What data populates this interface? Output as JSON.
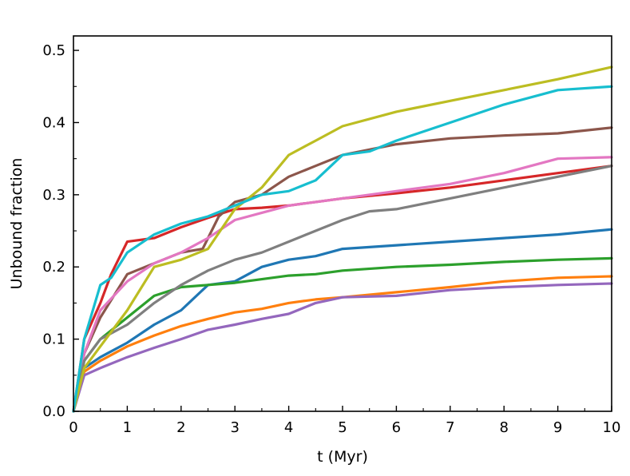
{
  "chart_data": {
    "type": "line",
    "title": "",
    "xlabel": "t (Myr)",
    "ylabel": "Unbound fraction",
    "xlim": [
      0,
      10
    ],
    "ylim": [
      0,
      0.52
    ],
    "x_ticks": [
      "0",
      "1",
      "2",
      "3",
      "4",
      "5",
      "6",
      "7",
      "8",
      "9",
      "10"
    ],
    "y_ticks": [
      "0.0",
      "0.1",
      "0.2",
      "0.3",
      "0.4",
      "0.5"
    ],
    "grid": false,
    "series": [
      {
        "color": "#1f77b4",
        "x": [
          0,
          0.2,
          0.5,
          1,
          1.5,
          2,
          2.5,
          3,
          3.5,
          4,
          4.5,
          5,
          6,
          7,
          8,
          9,
          10
        ],
        "y": [
          0,
          0.06,
          0.075,
          0.095,
          0.12,
          0.14,
          0.175,
          0.18,
          0.2,
          0.21,
          0.215,
          0.225,
          0.23,
          0.235,
          0.24,
          0.245,
          0.252
        ]
      },
      {
        "color": "#ff7f0e",
        "x": [
          0,
          0.2,
          0.5,
          1,
          1.5,
          2,
          2.5,
          3,
          3.5,
          4,
          4.5,
          5,
          6,
          7,
          8,
          9,
          10
        ],
        "y": [
          0,
          0.055,
          0.07,
          0.09,
          0.105,
          0.118,
          0.128,
          0.137,
          0.142,
          0.15,
          0.155,
          0.158,
          0.165,
          0.172,
          0.18,
          0.185,
          0.187
        ]
      },
      {
        "color": "#2ca02c",
        "x": [
          0,
          0.2,
          0.5,
          1,
          1.5,
          2,
          2.5,
          3,
          3.5,
          4,
          4.5,
          5,
          6,
          7,
          8,
          9,
          10
        ],
        "y": [
          0,
          0.07,
          0.1,
          0.13,
          0.16,
          0.172,
          0.175,
          0.178,
          0.183,
          0.188,
          0.19,
          0.195,
          0.2,
          0.203,
          0.207,
          0.21,
          0.212
        ]
      },
      {
        "color": "#d62728",
        "x": [
          0,
          0.2,
          0.5,
          0.7,
          1,
          1.5,
          2,
          2.5,
          3,
          3.5,
          4,
          4.5,
          5,
          6,
          7,
          8,
          9,
          10
        ],
        "y": [
          0,
          0.1,
          0.15,
          0.19,
          0.235,
          0.24,
          0.255,
          0.268,
          0.28,
          0.282,
          0.285,
          0.29,
          0.295,
          0.302,
          0.31,
          0.32,
          0.33,
          0.34
        ]
      },
      {
        "color": "#9467bd",
        "x": [
          0,
          0.2,
          0.5,
          1,
          1.5,
          2,
          2.5,
          3,
          3.5,
          4,
          4.5,
          5,
          6,
          7,
          8,
          9,
          10
        ],
        "y": [
          0,
          0.05,
          0.06,
          0.075,
          0.088,
          0.1,
          0.113,
          0.12,
          0.128,
          0.135,
          0.15,
          0.158,
          0.16,
          0.168,
          0.172,
          0.175,
          0.177
        ]
      },
      {
        "color": "#8c564b",
        "x": [
          0,
          0.2,
          0.5,
          1,
          1.5,
          2,
          2.4,
          2.7,
          3,
          3.5,
          4,
          4.5,
          5,
          6,
          7,
          8,
          9,
          10
        ],
        "y": [
          0,
          0.08,
          0.13,
          0.19,
          0.205,
          0.22,
          0.225,
          0.27,
          0.29,
          0.3,
          0.325,
          0.34,
          0.355,
          0.37,
          0.378,
          0.382,
          0.385,
          0.393
        ]
      },
      {
        "color": "#e377c2",
        "x": [
          0,
          0.2,
          0.5,
          1,
          1.5,
          2,
          2.5,
          3,
          3.5,
          4,
          4.5,
          5,
          6,
          7,
          8,
          9,
          10
        ],
        "y": [
          0,
          0.08,
          0.14,
          0.18,
          0.205,
          0.22,
          0.24,
          0.265,
          0.275,
          0.285,
          0.29,
          0.295,
          0.305,
          0.315,
          0.33,
          0.35,
          0.352
        ]
      },
      {
        "color": "#7f7f7f",
        "x": [
          0,
          0.2,
          0.5,
          1,
          1.5,
          2,
          2.5,
          3,
          3.5,
          4,
          4.5,
          5,
          5.5,
          6,
          7,
          8,
          9,
          10
        ],
        "y": [
          0,
          0.07,
          0.1,
          0.12,
          0.15,
          0.175,
          0.195,
          0.21,
          0.22,
          0.235,
          0.25,
          0.265,
          0.277,
          0.28,
          0.295,
          0.31,
          0.325,
          0.34
        ]
      },
      {
        "color": "#bcbd22",
        "x": [
          0,
          0.2,
          0.5,
          1,
          1.5,
          2,
          2.5,
          3,
          3.5,
          4,
          4.5,
          5,
          6,
          7,
          8,
          9,
          10
        ],
        "y": [
          0,
          0.06,
          0.09,
          0.14,
          0.2,
          0.21,
          0.225,
          0.28,
          0.31,
          0.355,
          0.375,
          0.395,
          0.415,
          0.43,
          0.445,
          0.46,
          0.477
        ]
      },
      {
        "color": "#17becf",
        "x": [
          0,
          0.2,
          0.5,
          0.7,
          1,
          1.5,
          2,
          2.5,
          3,
          3.5,
          4,
          4.5,
          5,
          5.5,
          6,
          7,
          8,
          9,
          10
        ],
        "y": [
          0,
          0.1,
          0.175,
          0.185,
          0.22,
          0.245,
          0.26,
          0.27,
          0.285,
          0.3,
          0.305,
          0.32,
          0.355,
          0.36,
          0.375,
          0.4,
          0.425,
          0.445,
          0.45
        ]
      }
    ]
  }
}
